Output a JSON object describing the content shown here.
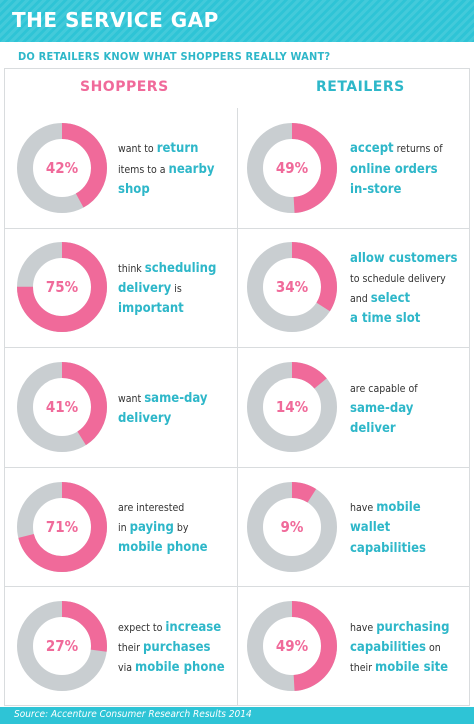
{
  "header": {
    "title": "THE SERVICE GAP"
  },
  "subtitle": "DO RETAILERS KNOW WHAT SHOPPERS REALLY WANT?",
  "columns": {
    "shoppers": "SHOPPERS",
    "retailers": "RETAILERS"
  },
  "footer": {
    "source": "Source: Accenture Consumer Research Results 2014"
  },
  "colors": {
    "accent_pink": "#f06a9a",
    "accent_teal": "#2eb7c9",
    "ring_gray": "#c9ced1"
  },
  "chart_data": {
    "type": "donut",
    "shoppers": [
      {
        "value": 42,
        "label": "42%",
        "lines": [
          [
            {
              "t": "want to ",
              "b": false
            },
            {
              "t": "return",
              "b": true
            }
          ],
          [
            {
              "t": "items to a ",
              "b": false
            },
            {
              "t": "nearby",
              "b": true
            }
          ],
          [
            {
              "t": "shop",
              "b": true
            }
          ]
        ]
      },
      {
        "value": 75,
        "label": "75%",
        "lines": [
          [
            {
              "t": "think ",
              "b": false
            },
            {
              "t": "scheduling",
              "b": true
            }
          ],
          [
            {
              "t": "delivery",
              "b": true
            },
            {
              "t": " is",
              "b": false
            }
          ],
          [
            {
              "t": "important",
              "b": true
            }
          ]
        ]
      },
      {
        "value": 41,
        "label": "41%",
        "lines": [
          [
            {
              "t": "want ",
              "b": false
            },
            {
              "t": "same-day",
              "b": true
            }
          ],
          [
            {
              "t": "delivery",
              "b": true
            }
          ]
        ]
      },
      {
        "value": 71,
        "label": "71%",
        "lines": [
          [
            {
              "t": "are interested",
              "b": false
            }
          ],
          [
            {
              "t": "in ",
              "b": false
            },
            {
              "t": "paying",
              "b": true
            },
            {
              "t": " by",
              "b": false
            }
          ],
          [
            {
              "t": "mobile phone",
              "b": true
            }
          ]
        ]
      },
      {
        "value": 27,
        "label": "27%",
        "lines": [
          [
            {
              "t": "expect to ",
              "b": false
            },
            {
              "t": "increase",
              "b": true
            }
          ],
          [
            {
              "t": "their ",
              "b": false
            },
            {
              "t": "purchases",
              "b": true
            }
          ],
          [
            {
              "t": "via ",
              "b": false
            },
            {
              "t": "mobile phone",
              "b": true
            }
          ]
        ]
      }
    ],
    "retailers": [
      {
        "value": 49,
        "label": "49%",
        "lines": [
          [
            {
              "t": "accept",
              "b": true
            },
            {
              "t": " returns of",
              "b": false
            }
          ],
          [
            {
              "t": "online orders",
              "b": true
            }
          ],
          [
            {
              "t": "in-store",
              "b": true
            }
          ]
        ]
      },
      {
        "value": 34,
        "label": "34%",
        "lines": [
          [
            {
              "t": "allow customers",
              "b": true
            }
          ],
          [
            {
              "t": "to schedule delivery",
              "b": false
            }
          ],
          [
            {
              "t": "and ",
              "b": false
            },
            {
              "t": "select",
              "b": true
            }
          ],
          [
            {
              "t": "a time slot",
              "b": true
            }
          ]
        ]
      },
      {
        "value": 14,
        "label": "14%",
        "lines": [
          [
            {
              "t": "are capable of",
              "b": false
            }
          ],
          [
            {
              "t": "same-day",
              "b": true
            }
          ],
          [
            {
              "t": "deliver",
              "b": true
            }
          ]
        ]
      },
      {
        "value": 9,
        "label": "9%",
        "lines": [
          [
            {
              "t": "have ",
              "b": false
            },
            {
              "t": "mobile",
              "b": true
            }
          ],
          [
            {
              "t": "wallet",
              "b": true
            }
          ],
          [
            {
              "t": "capabilities",
              "b": true
            }
          ]
        ]
      },
      {
        "value": 49,
        "label": "49%",
        "lines": [
          [
            {
              "t": "have ",
              "b": false
            },
            {
              "t": "purchasing",
              "b": true
            }
          ],
          [
            {
              "t": "capabilities",
              "b": true
            },
            {
              "t": " on",
              "b": false
            }
          ],
          [
            {
              "t": "their ",
              "b": false
            },
            {
              "t": "mobile site",
              "b": true
            }
          ]
        ]
      }
    ]
  }
}
